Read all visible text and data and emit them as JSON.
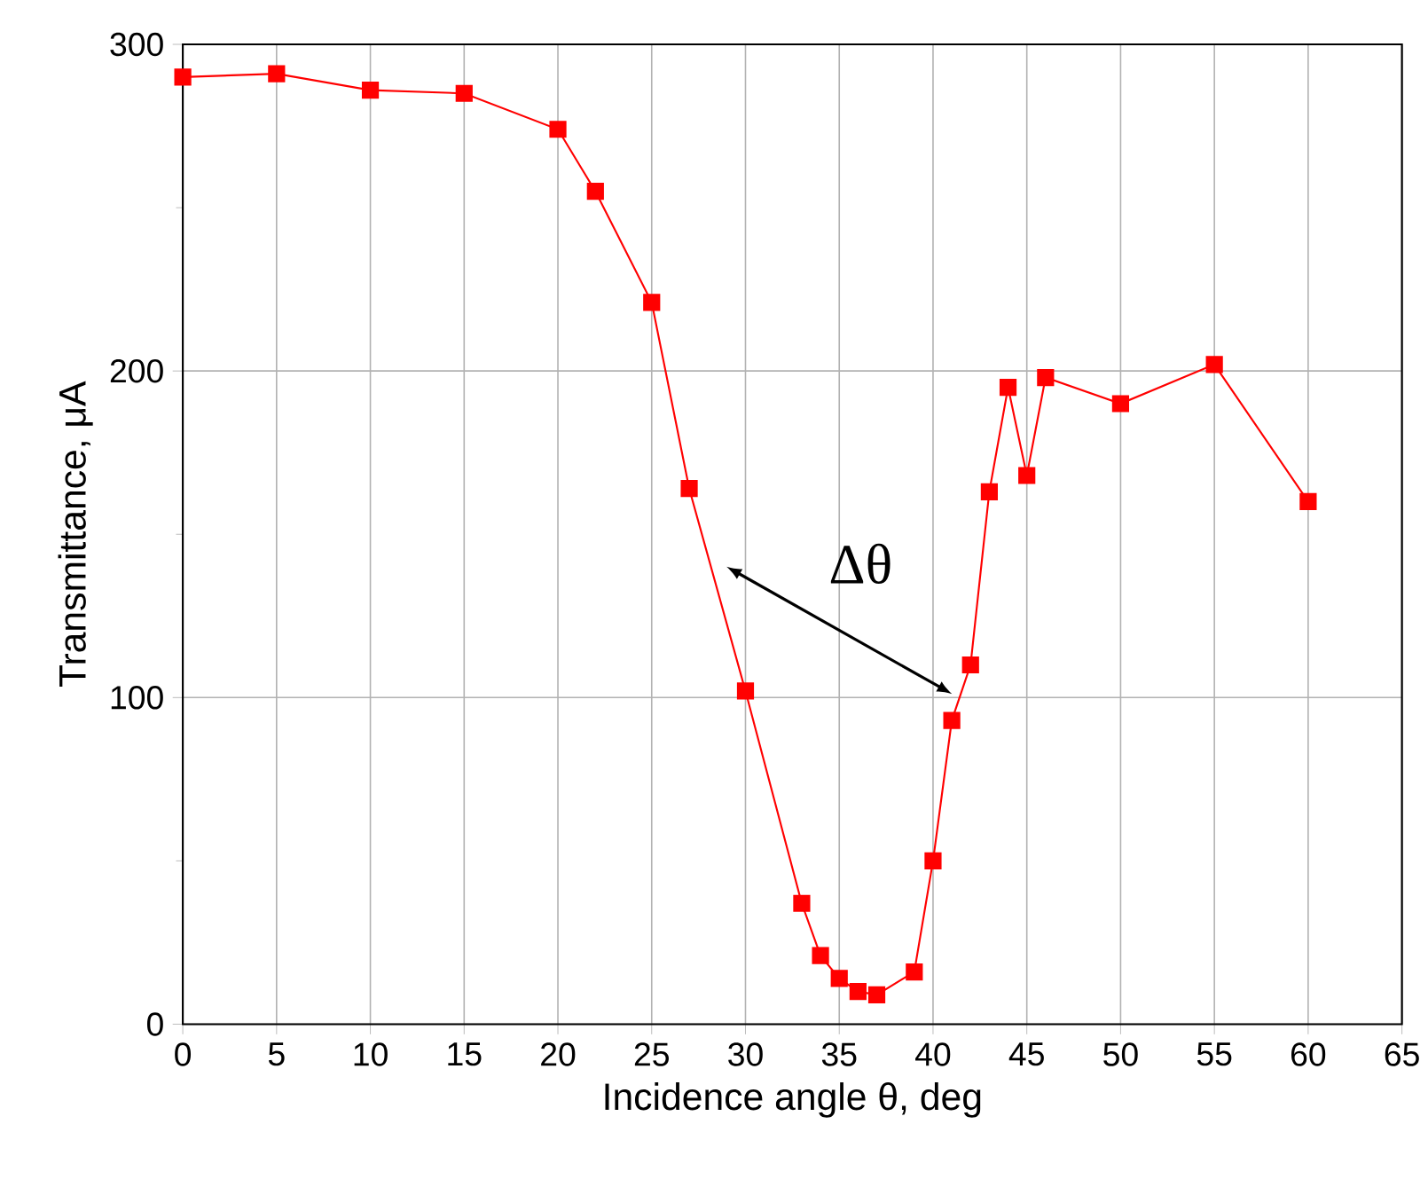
{
  "chart_data": {
    "type": "line",
    "xlabel": "Incidence angle θ, deg",
    "ylabel": "Transmittance, μA",
    "x": [
      0,
      5,
      10,
      15,
      20,
      22,
      25,
      27,
      30,
      33,
      34,
      35,
      36,
      37,
      39,
      40,
      41,
      42,
      43,
      44,
      45,
      46,
      50,
      55,
      60
    ],
    "series": [
      {
        "color": "#ff0000",
        "values": [
          290,
          291,
          286,
          285,
          274,
          255,
          221,
          164,
          102,
          37,
          21,
          14,
          10,
          9,
          16,
          50,
          93,
          110,
          163,
          195,
          168,
          198,
          190,
          202,
          160
        ]
      }
    ],
    "marker": "square",
    "line_style": "solid",
    "grid": true,
    "xlim": [
      0,
      65
    ],
    "xticks": [
      0,
      5,
      10,
      15,
      20,
      25,
      30,
      35,
      40,
      45,
      50,
      55,
      60,
      65
    ],
    "ylim": [
      0,
      300
    ],
    "yticks": [
      0,
      100,
      200,
      300
    ],
    "annotations": [
      "Δθ"
    ]
  }
}
